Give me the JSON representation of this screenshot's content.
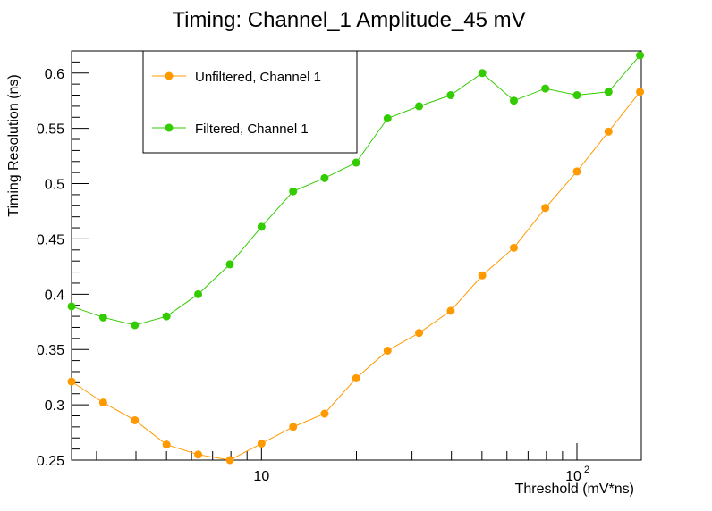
{
  "chart_data": {
    "type": "line",
    "title": "Timing: Channel_1 Amplitude_45 mV",
    "xlabel": "Threshold (mV*ns)",
    "ylabel": "Timing Resolution (ns)",
    "xscale": "log",
    "xlim": [
      2.5,
      160
    ],
    "ylim": [
      0.25,
      0.62
    ],
    "xtick_labels": [
      "10",
      "10^2"
    ],
    "ytick_values": [
      0.25,
      0.3,
      0.35,
      0.4,
      0.45,
      0.5,
      0.55,
      0.6
    ],
    "ytick_labels": [
      "0.25",
      "0.3",
      "0.35",
      "0.4",
      "0.45",
      "0.5",
      "0.55",
      "0.6"
    ],
    "legend_position": "top-left",
    "grid": false,
    "x": [
      2.5,
      3.15,
      3.97,
      5.0,
      6.3,
      7.94,
      10.0,
      12.6,
      15.85,
      19.95,
      25.1,
      31.6,
      39.8,
      50.1,
      63.1,
      79.4,
      100.0,
      125.9,
      158.5
    ],
    "series": [
      {
        "name": "Unfiltered, Channel 1",
        "color": "#ff9900",
        "values": [
          0.321,
          0.302,
          0.286,
          0.264,
          0.255,
          0.25,
          0.265,
          0.28,
          0.292,
          0.324,
          0.349,
          0.365,
          0.385,
          0.417,
          0.442,
          0.478,
          0.511,
          0.547,
          0.583
        ]
      },
      {
        "name": "Filtered, Channel 1",
        "color": "#33cc00",
        "values": [
          0.389,
          0.379,
          0.372,
          0.38,
          0.4,
          0.427,
          0.461,
          0.493,
          0.505,
          0.519,
          0.559,
          0.57,
          0.58,
          0.6,
          0.575,
          0.586,
          0.58,
          0.583,
          0.616
        ]
      }
    ]
  }
}
